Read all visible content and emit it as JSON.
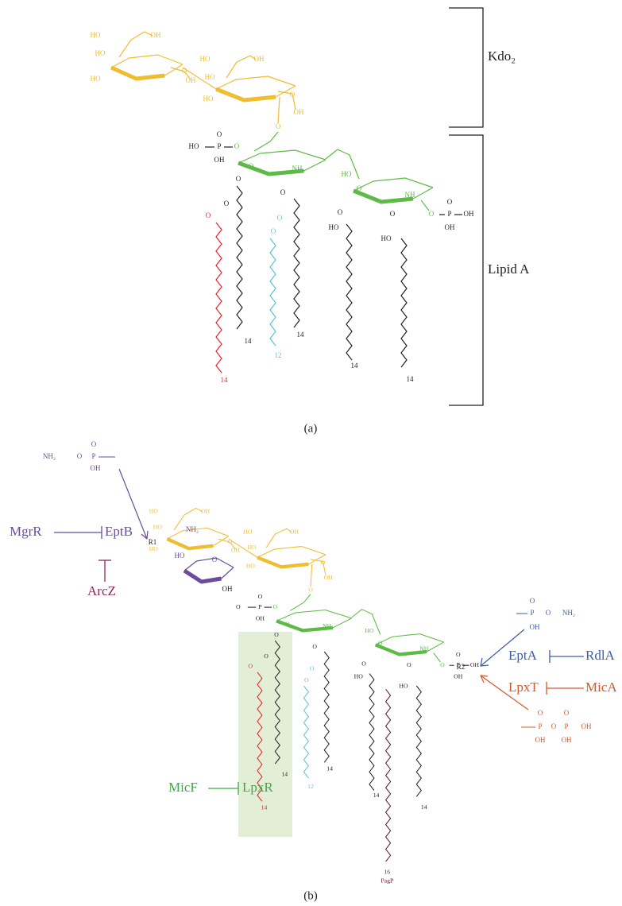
{
  "panel_a": {
    "label": "(a)",
    "brackets": [
      "Kdo₂",
      "Lipid A"
    ],
    "atoms": [
      "HO",
      "OH",
      "HO",
      "HO",
      "O",
      "OH",
      "HO",
      "OH",
      "HO",
      "HO",
      "O",
      "OH",
      "O",
      "HO",
      "P",
      "O",
      "OH",
      "O",
      "O",
      "NH",
      "HO",
      "O",
      "NH",
      "O",
      "P",
      "O",
      "OH",
      "OH",
      "O",
      "O",
      "O",
      "O",
      "O",
      "O",
      "O",
      "HO",
      "O",
      "HO"
    ],
    "chain_ends": [
      "14",
      "14",
      "12",
      "14",
      "14",
      "14"
    ]
  },
  "panel_b": {
    "label": "(b)",
    "atoms": [
      "HO",
      "OH",
      "HO",
      "HO",
      "O",
      "OH",
      "HO",
      "OH",
      "HO",
      "HO",
      "O",
      "OH",
      "O",
      "O",
      "P",
      "O",
      "OH",
      "O",
      "O",
      "NH",
      "HO",
      "O",
      "NH",
      "O",
      "P",
      "O",
      "OH",
      "OH",
      "O",
      "O",
      "O",
      "O",
      "O",
      "O",
      "O",
      "HO",
      "O",
      "HO"
    ],
    "chain_ends": [
      "14",
      "14",
      "12",
      "14",
      "14",
      "14"
    ],
    "pagp_chain": [
      "16",
      "PagP"
    ],
    "substituents": [
      "R1",
      "R2"
    ],
    "regulators": [
      "MgrR",
      "EptB",
      "ArcZ",
      "EptA",
      "RdlA",
      "LpxT",
      "MicA",
      "MicF",
      "LpxR"
    ],
    "pEtN_left": [
      "NH₂",
      "O",
      "P",
      "O",
      "OH"
    ],
    "pEtN_right": [
      "O",
      "P",
      "O",
      "NH₂",
      "OH"
    ],
    "pp": [
      "O",
      "P",
      "O",
      "P",
      "O",
      "OH",
      "OH",
      "OH"
    ],
    "aminoarabinose": [
      "NH₂",
      "HO",
      "OH",
      "O"
    ]
  }
}
